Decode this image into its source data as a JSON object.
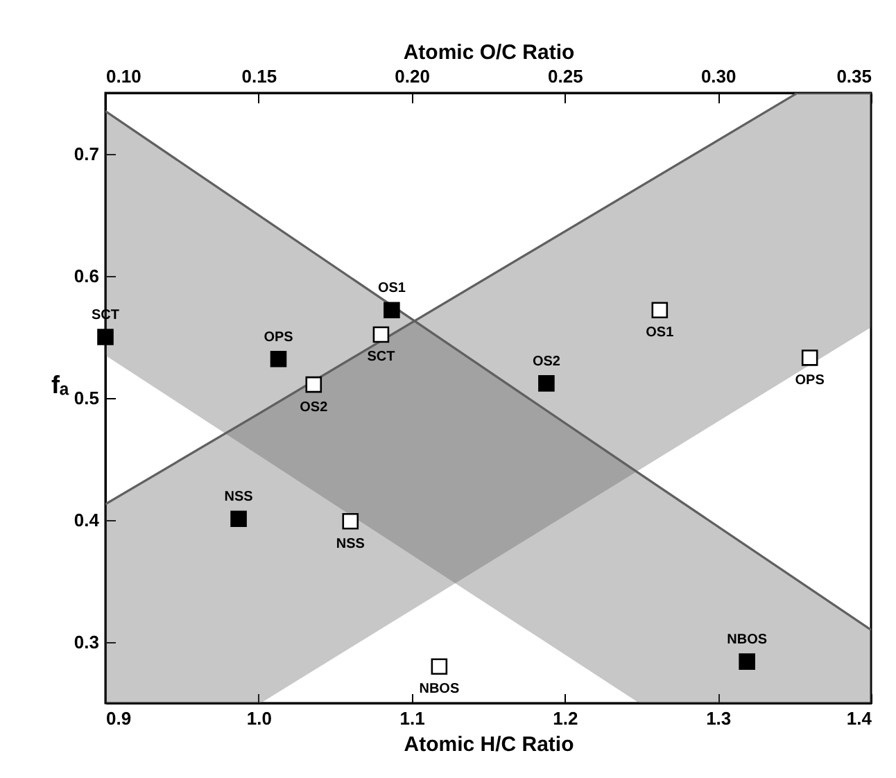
{
  "chart_data": {
    "type": "scatter",
    "xlabel": "Atomic H/C Ratio",
    "x2label": "Atomic O/C Ratio",
    "ylabel": "fₐ",
    "xlim": [
      0.9,
      1.4
    ],
    "xticks": [
      0.9,
      {
        "value": 1,
        "label": "1.0"
      },
      1.1,
      1.2,
      1.3,
      1.4
    ],
    "x2lim": [
      0.1,
      0.35
    ],
    "x2ticks": [
      {
        "value": 0.1,
        "label": "0.10"
      },
      0.15,
      {
        "value": 0.2,
        "label": "0.20"
      },
      0.25,
      {
        "value": 0.3,
        "label": "0.30"
      },
      0.35
    ],
    "ylim": [
      0.25,
      0.75
    ],
    "yticks": [
      0.3,
      0.4,
      0.5,
      0.6,
      0.7
    ],
    "grid": false,
    "series": [
      {
        "type": "line",
        "color": "#606060",
        "x": [
          0.9,
          1.25,
          1.4
        ],
        "values": [
          0.735,
          0.437,
          0.31
        ],
        "upper": [
          0.735,
          0.437,
          0.31
        ],
        "lower": [
          0.536,
          0.25,
          0.25
        ]
      },
      {
        "type": "line",
        "color": "#606060",
        "x": [
          0.9,
          1.0,
          1.352,
          1.4
        ],
        "values": [
          0.413,
          0.487,
          0.75,
          0.75
        ],
        "upper": [
          0.413,
          0.487,
          0.75,
          0.75
        ],
        "lower": [
          0.25,
          0.25,
          0.522,
          0.559
        ]
      },
      {
        "color": "#000000",
        "marker": "square",
        "x": [
          0.9,
          1.013,
          1.087,
          0.987,
          1.188,
          1.319
        ],
        "values": [
          0.55,
          0.532,
          0.572,
          0.401,
          0.512,
          0.284
        ],
        "value_labels": [
          "SCT",
          "OPS",
          "OS1",
          "NSS",
          "OS2",
          "NBOS"
        ]
      },
      {
        "color": "#ffffff",
        "marker": "square",
        "axis": "x2",
        "x": [
          0.19,
          0.168,
          0.18,
          0.209,
          0.281,
          0.33
        ],
        "values": [
          0.552,
          0.511,
          0.399,
          0.28,
          0.572,
          0.533
        ],
        "value_labels": [
          "SCT",
          "OS2",
          "NSS",
          "NBOS",
          "OS1",
          "OPS"
        ]
      }
    ]
  }
}
